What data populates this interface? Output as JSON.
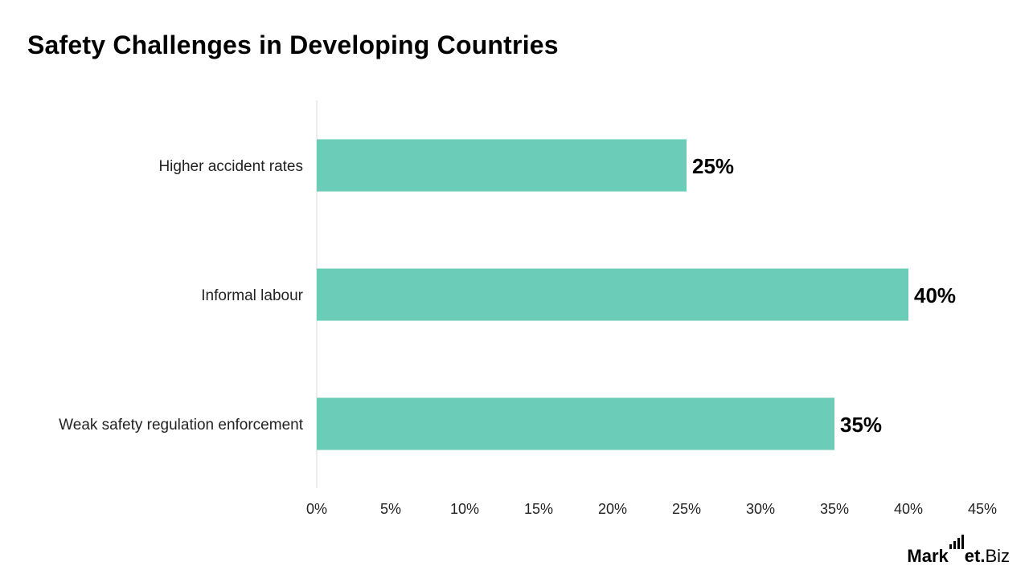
{
  "chart_data": {
    "type": "bar",
    "orientation": "horizontal",
    "title": "Safety Challenges in Developing Countries",
    "categories": [
      "Higher accident rates",
      "Informal labour",
      "Weak safety regulation enforcement"
    ],
    "values": [
      25,
      40,
      35
    ],
    "value_labels": [
      "25%",
      "40%",
      "35%"
    ],
    "xlim": [
      0,
      45
    ],
    "x_ticks": [
      0,
      5,
      10,
      15,
      20,
      25,
      30,
      35,
      40,
      45
    ],
    "x_tick_labels": [
      "0%",
      "5%",
      "10%",
      "15%",
      "20%",
      "25%",
      "30%",
      "35%",
      "40%",
      "45%"
    ],
    "bar_color": "#6BCDB8",
    "grid": false,
    "legend": "none"
  },
  "logo": {
    "part1": "Mark",
    "part2": "et",
    "dot": ".",
    "part3": "Biz"
  }
}
